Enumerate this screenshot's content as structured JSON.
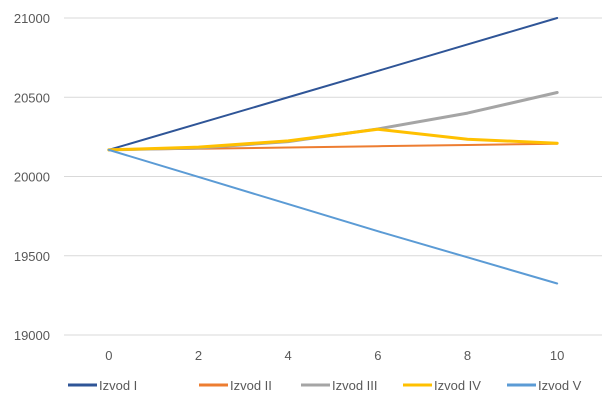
{
  "chart_data": {
    "type": "line",
    "title": "",
    "xlabel": "",
    "ylabel": "",
    "x": [
      0,
      2,
      4,
      6,
      8,
      10
    ],
    "xlim": [
      -1,
      11
    ],
    "ylim": [
      19000,
      21000
    ],
    "y_ticks": [
      19000,
      19500,
      20000,
      20500,
      21000
    ],
    "x_ticks": [
      0,
      2,
      4,
      6,
      8,
      10
    ],
    "grid": "horizontal",
    "legend_position": "bottom",
    "series": [
      {
        "name": "Izvod I",
        "color": "#2F5597",
        "values": [
          20168,
          20334,
          20500,
          20666,
          20833,
          21000
        ]
      },
      {
        "name": "Izvod II",
        "color": "#ED7D31",
        "values": [
          20168,
          20175,
          20183,
          20191,
          20199,
          20207
        ]
      },
      {
        "name": "Izvod III",
        "color": "#A5A5A5",
        "values": [
          20168,
          20180,
          20220,
          20300,
          20400,
          20530
        ]
      },
      {
        "name": "Izvod IV",
        "color": "#FFC000",
        "values": [
          20168,
          20185,
          20225,
          20298,
          20235,
          20210
        ]
      },
      {
        "name": "Izvod V",
        "color": "#5B9BD5",
        "values": [
          20168,
          19997,
          19826,
          19655,
          19490,
          19325
        ]
      }
    ]
  }
}
